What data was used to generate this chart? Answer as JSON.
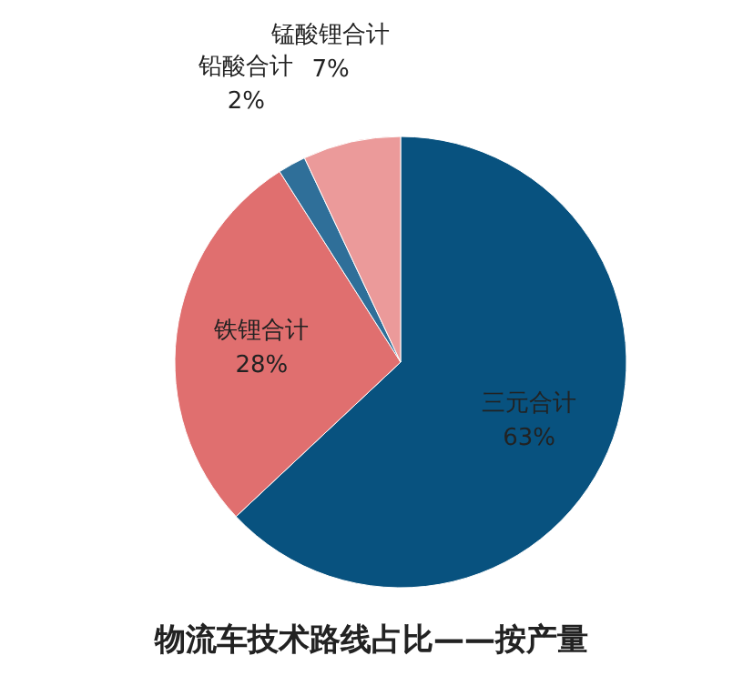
{
  "chart_data": {
    "type": "pie",
    "title": "物流车技术路线占比——按产量",
    "categories": [
      "三元合计",
      "铁锂合计",
      "铅酸合计",
      "锰酸锂合计"
    ],
    "values": [
      63,
      28,
      2,
      7
    ],
    "value_labels": [
      "63%",
      "28%",
      "2%",
      "7%"
    ],
    "colors": [
      "#08527f",
      "#e06f6f",
      "#2f6f99",
      "#eb9a9a"
    ]
  }
}
